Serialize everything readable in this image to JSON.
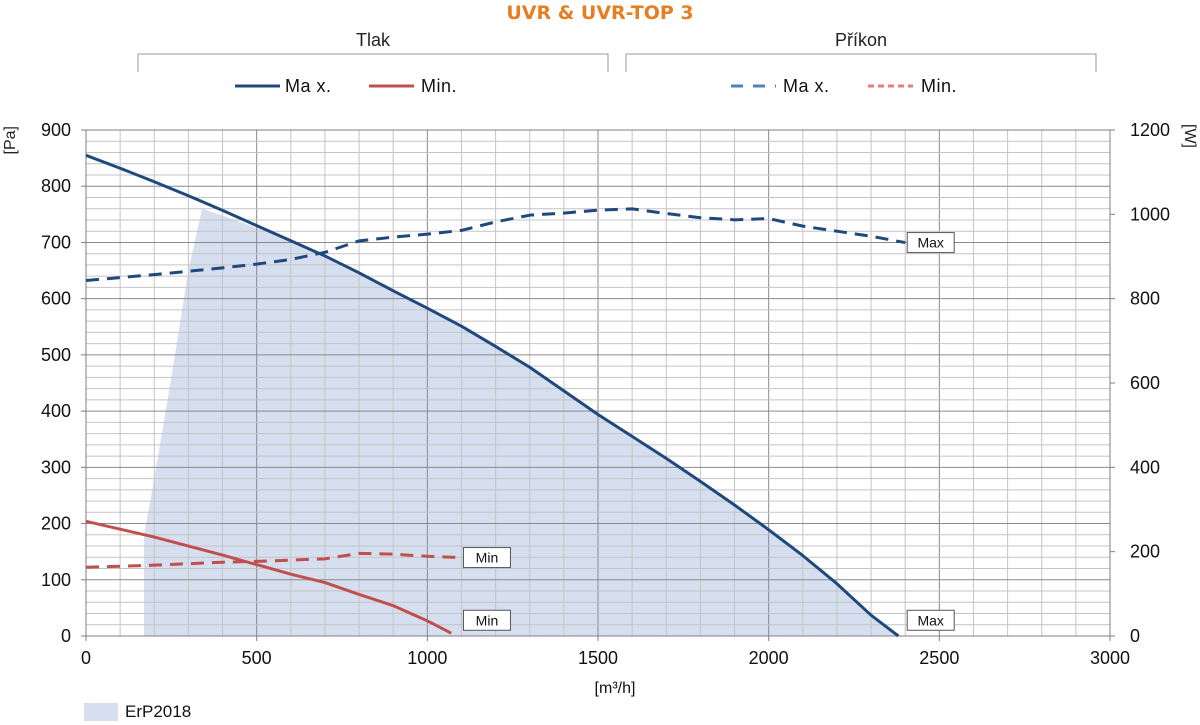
{
  "chart_data": {
    "type": "line",
    "title": "UVR & UVR-TOP 3",
    "title_color": "#E67E22",
    "groups": [
      {
        "label": "Tlak",
        "axis": "left"
      },
      {
        "label": "Příkon",
        "axis": "right"
      }
    ],
    "legend_items": [
      {
        "label": "Ma x.",
        "style": "solid",
        "color": "#1F497D"
      },
      {
        "label": "Min.",
        "style": "solid",
        "color": "#C0504D"
      },
      {
        "label": "Ma x.",
        "style": "dashed",
        "color": "#4F81BD"
      },
      {
        "label": "Min.",
        "style": "dashed",
        "color": "#E8787A"
      }
    ],
    "xlabel": "[m³/h]",
    "ylabel": "[Pa]",
    "y2label": "[W]",
    "xlim": [
      0,
      3000
    ],
    "ylim": [
      0,
      900
    ],
    "y2lim": [
      0,
      1200
    ],
    "xticks": [
      0,
      500,
      1000,
      1500,
      2000,
      2500,
      3000
    ],
    "yticks": [
      0,
      100,
      200,
      300,
      400,
      500,
      600,
      700,
      800,
      900
    ],
    "y2ticks": [
      0,
      200,
      400,
      600,
      800,
      1000,
      1200
    ],
    "grid": true,
    "area": {
      "name": "ErP2018",
      "color": "#D6DFEF",
      "points": [
        [
          170,
          180
        ],
        [
          200,
          280
        ],
        [
          250,
          460
        ],
        [
          300,
          650
        ],
        [
          340,
          760
        ],
        [
          400,
          748
        ],
        [
          500,
          726
        ],
        [
          600,
          704
        ],
        [
          700,
          676
        ],
        [
          800,
          646
        ],
        [
          900,
          614
        ],
        [
          1000,
          583
        ],
        [
          1100,
          551
        ],
        [
          1200,
          515
        ],
        [
          1300,
          478
        ],
        [
          1400,
          436
        ],
        [
          1500,
          394
        ],
        [
          1600,
          355
        ],
        [
          1700,
          316
        ],
        [
          1800,
          275
        ],
        [
          1900,
          233
        ],
        [
          2000,
          189
        ],
        [
          2100,
          143
        ],
        [
          2200,
          93
        ],
        [
          2300,
          37
        ],
        [
          2380,
          0
        ],
        [
          170,
          0
        ]
      ]
    },
    "series": [
      {
        "name": "Ma x.",
        "axis": "left",
        "style": "solid",
        "color": "#1F497D",
        "points": [
          [
            0,
            855
          ],
          [
            100,
            832
          ],
          [
            200,
            808
          ],
          [
            300,
            783
          ],
          [
            400,
            757
          ],
          [
            500,
            730
          ],
          [
            600,
            703
          ],
          [
            700,
            676
          ],
          [
            800,
            646
          ],
          [
            900,
            614
          ],
          [
            1000,
            583
          ],
          [
            1100,
            551
          ],
          [
            1200,
            515
          ],
          [
            1300,
            478
          ],
          [
            1400,
            436
          ],
          [
            1500,
            394
          ],
          [
            1600,
            355
          ],
          [
            1700,
            316
          ],
          [
            1800,
            275
          ],
          [
            1900,
            233
          ],
          [
            2000,
            189
          ],
          [
            2100,
            143
          ],
          [
            2200,
            93
          ],
          [
            2300,
            37
          ],
          [
            2380,
            0
          ]
        ]
      },
      {
        "name": "Min.",
        "axis": "left",
        "style": "solid",
        "color": "#C0504D",
        "points": [
          [
            0,
            204
          ],
          [
            200,
            176
          ],
          [
            400,
            144
          ],
          [
            500,
            127
          ],
          [
            600,
            110
          ],
          [
            700,
            95
          ],
          [
            800,
            74
          ],
          [
            900,
            54
          ],
          [
            1000,
            27
          ],
          [
            1070,
            5
          ]
        ]
      },
      {
        "name": "Ma x.",
        "axis": "right",
        "style": "dashed",
        "color": "#1F497D",
        "points": [
          [
            0,
            843
          ],
          [
            200,
            857
          ],
          [
            400,
            873
          ],
          [
            500,
            882
          ],
          [
            600,
            893
          ],
          [
            700,
            910
          ],
          [
            800,
            937
          ],
          [
            900,
            946
          ],
          [
            1000,
            953
          ],
          [
            1100,
            962
          ],
          [
            1200,
            982
          ],
          [
            1300,
            998
          ],
          [
            1400,
            1003
          ],
          [
            1500,
            1010
          ],
          [
            1600,
            1013
          ],
          [
            1700,
            1002
          ],
          [
            1800,
            992
          ],
          [
            1900,
            987
          ],
          [
            2000,
            990
          ],
          [
            2100,
            972
          ],
          [
            2200,
            960
          ],
          [
            2300,
            948
          ],
          [
            2400,
            933
          ]
        ]
      },
      {
        "name": "Min.",
        "axis": "right",
        "style": "dashed",
        "color": "#C0504D",
        "points": [
          [
            0,
            163
          ],
          [
            200,
            168
          ],
          [
            400,
            175
          ],
          [
            500,
            177
          ],
          [
            600,
            180
          ],
          [
            700,
            183
          ],
          [
            800,
            196
          ],
          [
            900,
            194
          ],
          [
            1000,
            189
          ],
          [
            1100,
            186
          ]
        ]
      }
    ],
    "annotations": [
      {
        "text": "Max",
        "x": 2400,
        "axis": "right",
        "y": 933
      },
      {
        "text": "Min",
        "x": 1100,
        "axis": "right",
        "y": 186
      },
      {
        "text": "Min",
        "x": 1100,
        "axis": "left",
        "y": 28
      },
      {
        "text": "Max",
        "x": 2400,
        "axis": "left",
        "y": 28
      }
    ],
    "bottom_legend": {
      "label": "ErP2018"
    }
  }
}
